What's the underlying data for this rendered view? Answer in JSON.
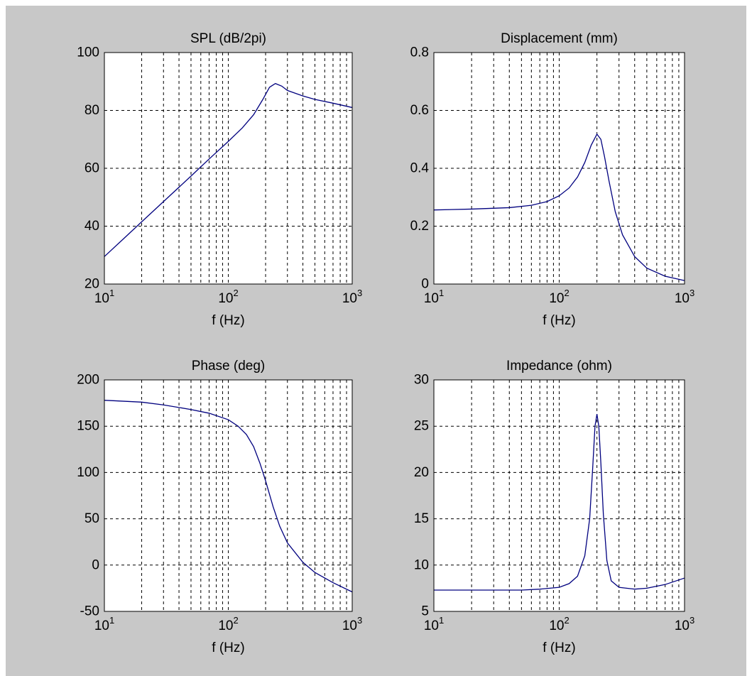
{
  "figure": {
    "background_color": "#c8c8c8",
    "axes_background_color": "#ffffff",
    "line_color": "#00007f",
    "grid_color": "#000000"
  },
  "chart_data": [
    {
      "type": "line",
      "title": "SPL (dB/2pi)",
      "xlabel": "f (Hz)",
      "ylabel": "",
      "xscale": "log",
      "xlim": [
        10,
        1000
      ],
      "ylim": [
        20,
        100
      ],
      "xticks": [
        10,
        100,
        1000
      ],
      "yticks": [
        20,
        40,
        60,
        80,
        100
      ],
      "xtick_labels": [
        {
          "base": "10",
          "exp": "1"
        },
        {
          "base": "10",
          "exp": "2"
        },
        {
          "base": "10",
          "exp": "3"
        }
      ],
      "ytick_labels": [
        "20",
        "40",
        "60",
        "80",
        "100"
      ],
      "grid": true,
      "x": [
        10,
        15,
        20,
        30,
        50,
        70,
        100,
        130,
        160,
        190,
        215,
        240,
        270,
        300,
        400,
        500,
        700,
        1000
      ],
      "y": [
        29.5,
        36.5,
        41.5,
        48.5,
        57.3,
        63.2,
        69.3,
        74.0,
        78.5,
        83.8,
        88.0,
        89.3,
        88.4,
        86.9,
        85.0,
        83.8,
        82.5,
        81.0
      ]
    },
    {
      "type": "line",
      "title": "Displacement (mm)",
      "xlabel": "f (Hz)",
      "ylabel": "",
      "xscale": "log",
      "xlim": [
        10,
        1000
      ],
      "ylim": [
        0,
        0.8
      ],
      "xticks": [
        10,
        100,
        1000
      ],
      "yticks": [
        0,
        0.2,
        0.4,
        0.6,
        0.8
      ],
      "xtick_labels": [
        {
          "base": "10",
          "exp": "1"
        },
        {
          "base": "10",
          "exp": "2"
        },
        {
          "base": "10",
          "exp": "3"
        }
      ],
      "ytick_labels": [
        "0",
        "0.2",
        "0.4",
        "0.6",
        "0.8"
      ],
      "grid": true,
      "x": [
        10,
        20,
        40,
        60,
        80,
        100,
        120,
        140,
        160,
        180,
        200,
        215,
        230,
        250,
        280,
        320,
        400,
        500,
        700,
        1000
      ],
      "y": [
        0.256,
        0.259,
        0.264,
        0.272,
        0.285,
        0.305,
        0.332,
        0.37,
        0.42,
        0.48,
        0.518,
        0.5,
        0.44,
        0.355,
        0.25,
        0.17,
        0.095,
        0.055,
        0.027,
        0.012
      ]
    },
    {
      "type": "line",
      "title": "Phase (deg)",
      "xlabel": "f (Hz)",
      "ylabel": "",
      "xscale": "log",
      "xlim": [
        10,
        1000
      ],
      "ylim": [
        -50,
        200
      ],
      "xticks": [
        10,
        100,
        1000
      ],
      "yticks": [
        -50,
        0,
        50,
        100,
        150,
        200
      ],
      "xtick_labels": [
        {
          "base": "10",
          "exp": "1"
        },
        {
          "base": "10",
          "exp": "2"
        },
        {
          "base": "10",
          "exp": "3"
        }
      ],
      "ytick_labels": [
        "-50",
        "0",
        "50",
        "100",
        "150",
        "200"
      ],
      "grid": true,
      "x": [
        10,
        20,
        30,
        50,
        70,
        100,
        120,
        140,
        160,
        180,
        200,
        230,
        260,
        300,
        400,
        500,
        700,
        1000
      ],
      "y": [
        178,
        176,
        173,
        168,
        164,
        157,
        150,
        141,
        128,
        110,
        91,
        63,
        42,
        24,
        3,
        -8,
        -19,
        -29
      ]
    },
    {
      "type": "line",
      "title": "Impedance (ohm)",
      "xlabel": "f (Hz)",
      "ylabel": "",
      "xscale": "log",
      "xlim": [
        10,
        1000
      ],
      "ylim": [
        5,
        30
      ],
      "xticks": [
        10,
        100,
        1000
      ],
      "yticks": [
        5,
        10,
        15,
        20,
        25,
        30
      ],
      "xtick_labels": [
        {
          "base": "10",
          "exp": "1"
        },
        {
          "base": "10",
          "exp": "2"
        },
        {
          "base": "10",
          "exp": "3"
        }
      ],
      "ytick_labels": [
        "5",
        "10",
        "15",
        "20",
        "25",
        "30"
      ],
      "grid": true,
      "x": [
        10,
        30,
        50,
        70,
        100,
        120,
        140,
        160,
        175,
        185,
        193,
        200,
        207,
        215,
        225,
        240,
        260,
        300,
        400,
        500,
        700,
        1000
      ],
      "y": [
        7.3,
        7.3,
        7.3,
        7.4,
        7.6,
        8.0,
        8.8,
        11.0,
        15.0,
        20.5,
        25.0,
        26.3,
        25.0,
        21.0,
        15.5,
        10.5,
        8.3,
        7.6,
        7.4,
        7.5,
        7.9,
        8.6
      ]
    }
  ]
}
